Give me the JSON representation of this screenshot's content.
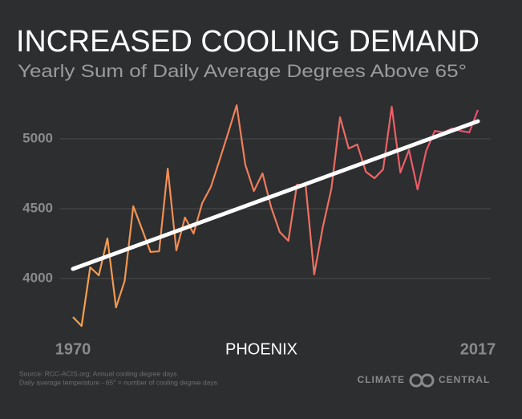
{
  "chart_data": {
    "type": "line",
    "title": "INCREASED COOLING DEMAND",
    "subtitle": "Yearly Sum of Daily Average Degrees Above 65°",
    "annotation": "PHOENIX",
    "source": [
      "Source: RCC-ACIS.org; Annual cooling degree days",
      "Daily average temperature - 65° = number of cooling degree days"
    ],
    "brand": [
      "CLIMATE",
      "CENTRAL"
    ],
    "x": [
      1970,
      1971,
      1972,
      1973,
      1974,
      1975,
      1976,
      1977,
      1978,
      1979,
      1980,
      1981,
      1982,
      1983,
      1984,
      1985,
      1986,
      1987,
      1988,
      1989,
      1990,
      1991,
      1992,
      1993,
      1994,
      1995,
      1996,
      1997,
      1998,
      1999,
      2000,
      2001,
      2002,
      2003,
      2004,
      2005,
      2006,
      2007,
      2008,
      2009,
      2010,
      2011,
      2012,
      2013,
      2014,
      2015,
      2016,
      2017
    ],
    "values": [
      3724,
      3660,
      4080,
      4023,
      4287,
      3793,
      3983,
      4517,
      4356,
      4190,
      4195,
      4787,
      4201,
      4437,
      4322,
      4540,
      4655,
      4845,
      5040,
      5241,
      4816,
      4626,
      4753,
      4511,
      4333,
      4270,
      4672,
      4672,
      4029,
      4368,
      4644,
      5155,
      4931,
      4960,
      4764,
      4718,
      4782,
      5230,
      4759,
      4920,
      4638,
      4914,
      5057,
      5046,
      5075,
      5057,
      5046,
      5207
    ],
    "colors": [
      "#f4a24c",
      "#ea4f6e"
    ],
    "trend": {
      "x": [
        1970,
        2017
      ],
      "values": [
        4069,
        5126
      ],
      "color": "#ffffff"
    },
    "xlim": [
      1970,
      2017
    ],
    "xticks": [
      1970,
      2017
    ],
    "ylim": [
      3600,
      5400
    ],
    "yticks": [
      4000,
      4500,
      5000
    ],
    "grid": true
  }
}
